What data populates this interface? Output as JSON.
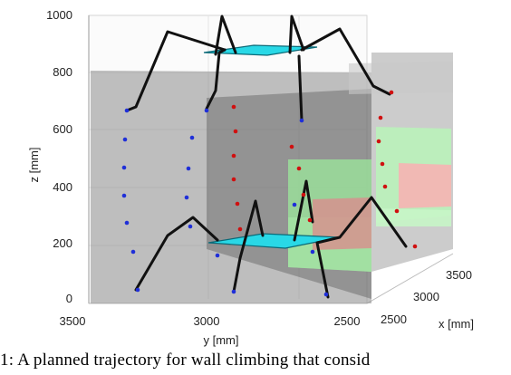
{
  "figure": {
    "caption": "1: A planned trajectory for wall climbing that consid",
    "colors": {
      "robot_link": "#111111",
      "platform": "#29d8e6",
      "foothold": "#d01010",
      "trajectory": "#1f2fd8",
      "wall": "#9a9a9a",
      "safe_region": "#9be89b",
      "unsafe_region": "#f0a0a0"
    }
  },
  "chart_data": {
    "type": "scatter",
    "projection": "3d",
    "zlabel": "z [mm]",
    "ylabel": "y [mm]",
    "xlabel": "x [mm]",
    "zlim": [
      0,
      1000
    ],
    "ylim": [
      2500,
      3500
    ],
    "xlim": [
      2500,
      3500
    ],
    "z_ticks": [
      "0",
      "200",
      "400",
      "600",
      "800",
      "1000"
    ],
    "y_ticks": [
      "3500",
      "3000",
      "2500"
    ],
    "x_ticks": [
      "2500",
      "3000",
      "3500"
    ],
    "grid": true
  }
}
